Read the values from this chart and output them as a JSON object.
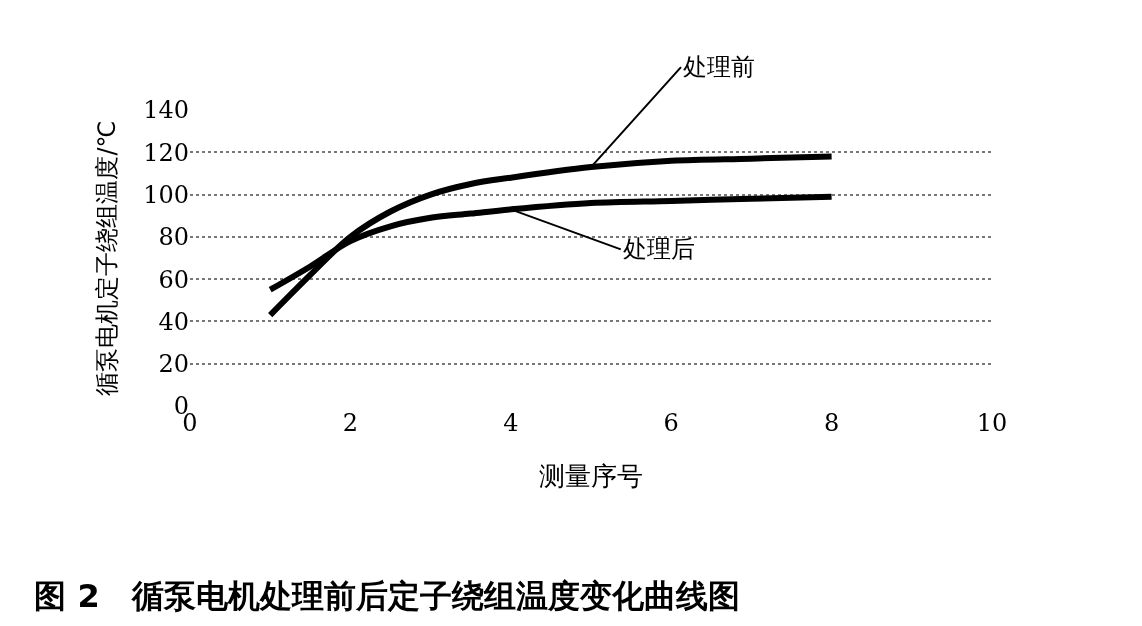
{
  "chart_data": {
    "type": "line",
    "title": "图 2　循泵电机处理前后定子绕组温度变化曲线图",
    "xlabel": "测量序号",
    "ylabel": "循泵电机定子绕组温度/℃",
    "x": [
      1,
      1.5,
      2,
      2.5,
      3,
      3.5,
      4,
      5,
      6,
      7,
      8
    ],
    "series": [
      {
        "name": "处理前",
        "color": "#000000",
        "values": [
          43,
          62,
          80,
          92,
          100,
          105,
          108,
          113,
          116,
          117,
          118
        ]
      },
      {
        "name": "处理后",
        "color": "#000000",
        "values": [
          55,
          66,
          78,
          85,
          89,
          91,
          93,
          96,
          97,
          98,
          99
        ]
      }
    ],
    "xlim": [
      0,
      10
    ],
    "xticks": [
      0,
      2,
      4,
      6,
      8,
      10
    ],
    "ylim": [
      0,
      140
    ],
    "yticks": [
      0,
      20,
      40,
      60,
      80,
      100,
      120,
      140
    ],
    "grid": "y",
    "legend": false,
    "marker": "none",
    "line_style": "solid"
  }
}
